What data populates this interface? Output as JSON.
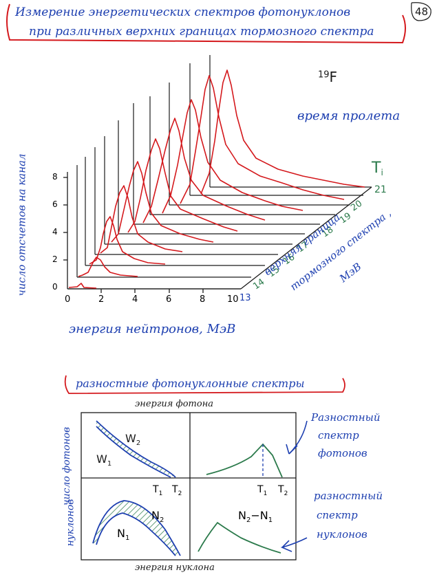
{
  "header": {
    "title_line1": "Измерение энергетических спектров фотонуклонов",
    "title_line2": "при различных верхних границах тормозного спектра",
    "page_number": "48"
  },
  "figure1": {
    "isotope_mass": "19",
    "isotope_symbol": "F",
    "method": "время пролета",
    "y_axis_label": "число отсчетов на канал",
    "x_axis_label": "энергия нейтронов, МэВ",
    "x_ticks": [
      "0",
      "2",
      "4",
      "6",
      "8",
      "10"
    ],
    "y_ticks": [
      "0",
      "2",
      "4",
      "6",
      "8"
    ],
    "depth_axis_label_line1": "верхняя граница",
    "depth_axis_label_line2": "тормозного спектра ,",
    "depth_axis_label_line3": "МэВ",
    "depth_ticks": [
      "13",
      "14",
      "15",
      "16",
      "17",
      "18",
      "19",
      "20",
      "21"
    ],
    "ti_main": "T",
    "ti_sub": "i"
  },
  "figure2": {
    "title": "разностные фотонуклонные спектры",
    "top_axis_label": "энергия фотона",
    "bottom_axis_label": "энергия нуклона",
    "left_label_top": "число фотонов",
    "left_label_bottom": "нуклонов",
    "w1": "W",
    "w1_sub": "1",
    "w2": "W",
    "w2_sub": "2",
    "n1": "N",
    "n1_sub": "1",
    "n2": "N",
    "n2_sub": "2",
    "n_diff": "N",
    "n_diff_sub_a": "2",
    "n_diff_minus": "−N",
    "n_diff_sub_b": "1",
    "t1": "T",
    "t1_sub": "1",
    "t2": "T",
    "t2_sub": "2",
    "photon_callout": [
      "Разностный",
      "спектр",
      "фотонов"
    ],
    "nucleon_callout": [
      "разностный",
      "спектр",
      "нуклонов"
    ]
  },
  "colors": {
    "ink_red": "#d4181c",
    "ink_blue": "#1d3fb0",
    "ink_green": "#2b7a4b",
    "ink_black": "#1a1a1a"
  }
}
